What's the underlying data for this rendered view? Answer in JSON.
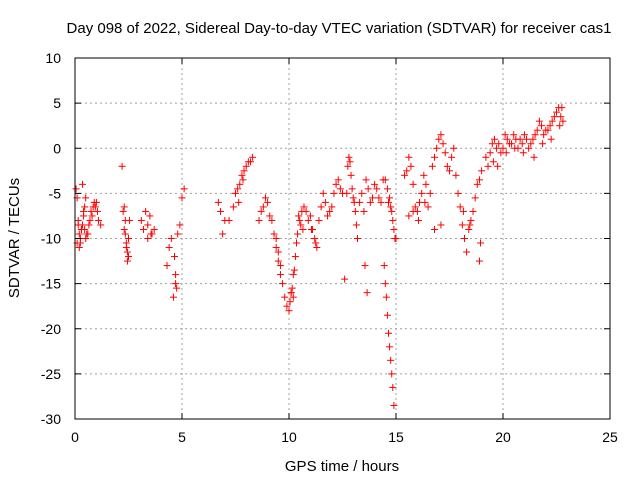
{
  "chart_data": {
    "type": "scatter",
    "title": "Day 098 of 2022, Sidereal Day-to-day VTEC variation (SDTVAR) for receiver cas1",
    "xlabel": "GPS time / hours",
    "ylabel": "SDTVAR / TECUs",
    "xlim": [
      0,
      25
    ],
    "ylim": [
      -30,
      10
    ],
    "xticks": [
      0,
      5,
      10,
      15,
      20,
      25
    ],
    "yticks": [
      -30,
      -25,
      -20,
      -15,
      -10,
      -5,
      0,
      5,
      10
    ],
    "xtick_labels": [
      "0",
      "5",
      "10",
      "15",
      "20",
      "25"
    ],
    "ytick_labels": [
      "-30",
      "-25",
      "-20",
      "-15",
      "-10",
      "-5",
      "0",
      "5",
      "10"
    ],
    "grid": true,
    "marker": "+",
    "series": [
      {
        "name": "SDTVAR",
        "color": "#ff0000",
        "x": [
          0.05,
          0.1,
          0.15,
          0.2,
          0.25,
          0.3,
          0.35,
          0.4,
          0.45,
          0.5,
          0.55,
          0.6,
          0.65,
          0.7,
          0.75,
          0.8,
          0.85,
          0.9,
          0.95,
          1.0,
          1.05,
          1.1,
          1.2,
          0.1,
          0.2,
          0.3,
          0.4,
          0.5,
          0.35,
          0.45,
          0.15,
          0.25,
          2.2,
          2.25,
          2.3,
          2.35,
          2.4,
          2.45,
          2.5,
          2.55,
          2.3,
          2.4,
          2.5,
          2.35,
          2.45,
          3.1,
          3.2,
          3.3,
          3.4,
          3.5,
          3.6,
          3.7,
          3.4,
          3.55,
          4.3,
          4.4,
          4.5,
          4.6,
          4.7,
          4.8,
          4.9,
          5.0,
          5.1,
          4.65,
          4.7,
          4.75,
          6.7,
          6.8,
          6.9,
          7.0,
          7.2,
          7.4,
          7.5,
          7.6,
          7.7,
          7.8,
          7.9,
          8.0,
          8.1,
          8.2,
          8.3,
          7.65,
          7.85,
          8.6,
          8.7,
          8.8,
          8.9,
          9.0,
          9.1,
          9.2,
          9.3,
          9.4,
          9.5,
          9.6,
          9.7,
          9.8,
          9.9,
          10.0,
          10.05,
          10.1,
          10.15,
          10.2,
          10.25,
          10.3,
          10.35,
          10.4,
          10.5,
          10.6,
          10.7,
          10.8,
          10.9,
          11.0,
          11.1,
          11.2,
          11.3,
          11.4,
          11.5,
          11.6,
          11.7,
          11.8,
          11.9,
          12.0,
          12.1,
          12.2,
          12.3,
          12.4,
          12.5,
          9.4,
          9.5,
          9.6,
          10.1,
          10.2,
          10.45,
          10.55,
          10.65,
          11.05,
          11.25,
          12.6,
          12.7,
          12.75,
          12.8,
          12.85,
          12.9,
          12.95,
          13.0,
          13.05,
          13.1,
          13.15,
          13.2,
          13.3,
          13.4,
          13.5,
          13.6,
          13.7,
          13.8,
          13.9,
          14.0,
          14.1,
          14.2,
          14.3,
          14.4,
          14.5,
          14.6,
          14.65,
          14.7,
          14.75,
          14.8,
          14.85,
          14.9,
          14.95,
          15.0,
          13.55,
          13.65,
          14.45,
          14.5,
          14.55,
          14.6,
          14.65,
          14.7,
          14.75,
          14.8,
          14.85,
          14.9,
          15.4,
          15.5,
          15.6,
          15.7,
          15.8,
          15.9,
          16.0,
          16.1,
          16.2,
          16.3,
          16.4,
          16.5,
          16.6,
          16.7,
          16.8,
          16.9,
          17.0,
          17.1,
          17.2,
          17.3,
          17.4,
          17.5,
          17.6,
          17.7,
          17.8,
          17.9,
          18.0,
          18.1,
          18.2,
          18.3,
          18.4,
          18.5,
          18.6,
          18.7,
          18.8,
          18.9,
          19.0,
          15.6,
          15.8,
          16.05,
          16.35,
          16.8,
          17.1,
          18.15,
          18.45,
          18.9,
          18.95,
          19.2,
          19.3,
          19.4,
          19.5,
          19.6,
          19.7,
          19.8,
          19.9,
          20.0,
          20.1,
          20.2,
          20.3,
          20.4,
          20.5,
          20.6,
          20.7,
          20.8,
          20.9,
          21.0,
          21.1,
          21.2,
          21.3,
          21.4,
          21.5,
          21.6,
          21.7,
          21.8,
          21.9,
          22.0,
          22.1,
          22.2,
          22.3,
          22.4,
          22.5,
          22.6,
          22.7,
          22.8,
          19.55,
          19.75,
          20.15,
          20.55,
          20.95,
          21.45,
          21.85,
          22.25,
          22.65,
          22.75
        ],
        "y": [
          -4.5,
          -5.5,
          -8.0,
          -9.5,
          -10.5,
          -9.0,
          -8.5,
          -7.5,
          -9.0,
          -10.0,
          -9.5,
          -9.5,
          -8.5,
          -8.0,
          -7.0,
          -7.5,
          -6.5,
          -6.0,
          -6.5,
          -6.0,
          -7.0,
          -8.0,
          -8.5,
          -10.5,
          -11.0,
          -9.0,
          -7.0,
          -5.5,
          -4.0,
          -6.5,
          -8.5,
          -10.0,
          -2.0,
          -7.0,
          -9.0,
          -8.0,
          -11.0,
          -12.5,
          -10.0,
          -8.0,
          -6.5,
          -10.5,
          -12.0,
          -9.5,
          -11.5,
          -8.0,
          -9.0,
          -7.0,
          -8.5,
          -7.5,
          -9.5,
          -9.0,
          -10.0,
          -9.5,
          -13.0,
          -11.0,
          -10.0,
          -16.5,
          -15.0,
          -9.5,
          -8.5,
          -5.5,
          -4.5,
          -12.0,
          -14.0,
          -15.5,
          -6.0,
          -7.0,
          -9.5,
          -8.0,
          -8.0,
          -6.5,
          -5.0,
          -4.5,
          -4.0,
          -3.0,
          -2.5,
          -2.0,
          -1.5,
          -1.5,
          -1.0,
          -6.0,
          -3.5,
          -8.0,
          -7.0,
          -6.5,
          -5.5,
          -6.0,
          -7.5,
          -8.0,
          -9.5,
          -11.0,
          -12.5,
          -14.0,
          -15.0,
          -16.5,
          -17.5,
          -18.0,
          -17.0,
          -16.0,
          -15.5,
          -14.0,
          -13.5,
          -12.0,
          -10.5,
          -9.5,
          -8.0,
          -7.0,
          -6.5,
          -7.0,
          -8.0,
          -7.5,
          -9.0,
          -10.0,
          -11.0,
          -8.0,
          -6.5,
          -5.0,
          -6.0,
          -7.5,
          -7.0,
          -6.5,
          -5.0,
          -4.0,
          -3.5,
          -4.5,
          -5.0,
          -10.0,
          -11.5,
          -13.0,
          -16.0,
          -16.5,
          -7.5,
          -8.5,
          -9.0,
          -9.0,
          -10.5,
          -14.5,
          -5.0,
          -2.0,
          -1.0,
          -1.5,
          -3.0,
          -4.5,
          -5.5,
          -6.0,
          -7.0,
          -8.5,
          -10.0,
          -6.0,
          -5.0,
          -7.0,
          -3.5,
          -4.5,
          -6.0,
          -5.5,
          -4.0,
          -4.5,
          -5.5,
          -6.0,
          -3.5,
          -3.5,
          -4.5,
          -6.0,
          -5.5,
          -6.5,
          -7.0,
          -8.0,
          -9.0,
          -10.0,
          -10.0,
          -13.0,
          -16.0,
          -13.0,
          -15.0,
          -16.5,
          -18.5,
          -20.5,
          -22.0,
          -23.5,
          -25.0,
          -26.5,
          -28.5,
          -3.0,
          -2.5,
          -1.0,
          -2.0,
          -4.0,
          -6.5,
          -7.0,
          -6.0,
          -5.0,
          -3.0,
          -4.0,
          -6.5,
          -5.0,
          -2.0,
          -1.0,
          0.0,
          1.0,
          1.5,
          0.5,
          -0.5,
          -2.0,
          -2.5,
          -1.0,
          0.0,
          -3.0,
          -5.0,
          -6.5,
          -8.5,
          -10.0,
          -11.5,
          -9.0,
          -8.0,
          -7.0,
          -5.5,
          -4.0,
          -3.5,
          -2.5,
          -7.5,
          -7.0,
          -8.0,
          -6.0,
          -9.0,
          -8.5,
          -7.0,
          -8.5,
          -12.5,
          -10.5,
          -1.0,
          -2.0,
          -0.5,
          0.5,
          1.0,
          0.0,
          0.5,
          -0.5,
          0.0,
          1.5,
          1.0,
          0.5,
          0.5,
          1.5,
          1.0,
          0.0,
          1.0,
          0.5,
          1.5,
          1.0,
          0.0,
          0.5,
          1.0,
          1.5,
          2.0,
          3.0,
          2.5,
          1.5,
          2.0,
          2.0,
          2.5,
          3.0,
          3.5,
          4.0,
          4.5,
          3.5,
          3.0,
          -1.5,
          -2.0,
          -0.5,
          0.0,
          -0.5,
          -1.0,
          0.5,
          1.0,
          2.5,
          4.5
        ]
      }
    ]
  }
}
